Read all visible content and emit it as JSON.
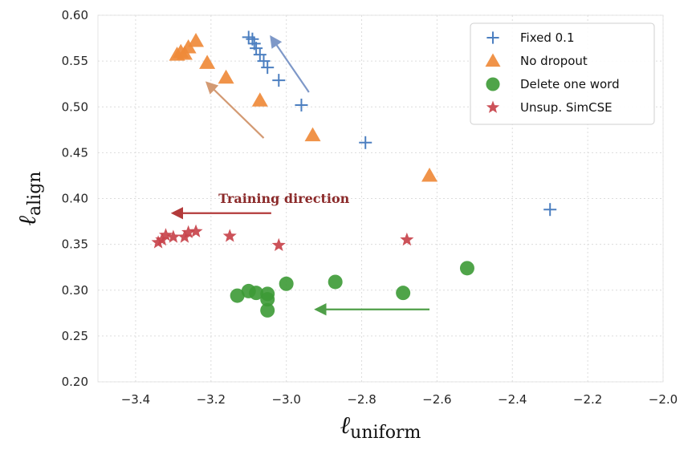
{
  "chart_data": {
    "type": "scatter",
    "title": "",
    "xlabel": {
      "main": "ℓ",
      "sub": "uniform"
    },
    "ylabel": {
      "main": "ℓ",
      "sub": "align"
    },
    "xlim": [
      -3.5,
      -2.0
    ],
    "ylim": [
      0.2,
      0.6
    ],
    "xticks": [
      -3.4,
      -3.2,
      -3.0,
      -2.8,
      -2.6,
      -2.4,
      -2.2,
      -2.0
    ],
    "xtick_labels": [
      "−3.4",
      "−3.2",
      "−3.0",
      "−2.8",
      "−2.6",
      "−2.4",
      "−2.2",
      "−2.0"
    ],
    "yticks": [
      0.2,
      0.25,
      0.3,
      0.35,
      0.4,
      0.45,
      0.5,
      0.55,
      0.6
    ],
    "ytick_labels": [
      "0.20",
      "0.25",
      "0.30",
      "0.35",
      "0.40",
      "0.45",
      "0.50",
      "0.55",
      "0.60"
    ],
    "grid": true,
    "legend_position": "top-right",
    "series": [
      {
        "name": "Fixed 0.1",
        "marker": "plus",
        "color": "#4c7fc0",
        "points": [
          [
            -2.3,
            0.388
          ],
          [
            -2.79,
            0.461
          ],
          [
            -2.96,
            0.502
          ],
          [
            -3.02,
            0.529
          ],
          [
            -3.05,
            0.543
          ],
          [
            -3.06,
            0.55
          ],
          [
            -3.07,
            0.557
          ],
          [
            -3.08,
            0.564
          ],
          [
            -3.085,
            0.569
          ],
          [
            -3.09,
            0.574
          ],
          [
            -3.1,
            0.576
          ]
        ]
      },
      {
        "name": "No dropout",
        "marker": "triangle",
        "color": "#ef8a3a",
        "points": [
          [
            -2.62,
            0.425
          ],
          [
            -2.93,
            0.469
          ],
          [
            -3.07,
            0.507
          ],
          [
            -3.16,
            0.532
          ],
          [
            -3.21,
            0.548
          ],
          [
            -3.24,
            0.572
          ],
          [
            -3.26,
            0.565
          ],
          [
            -3.27,
            0.558
          ],
          [
            -3.28,
            0.56
          ],
          [
            -3.29,
            0.557
          ]
        ]
      },
      {
        "name": "Delete one word",
        "marker": "circle",
        "color": "#3c9a35",
        "points": [
          [
            -2.52,
            0.324
          ],
          [
            -2.69,
            0.297
          ],
          [
            -2.87,
            0.309
          ],
          [
            -3.0,
            0.307
          ],
          [
            -3.05,
            0.296
          ],
          [
            -3.05,
            0.29
          ],
          [
            -3.05,
            0.278
          ],
          [
            -3.08,
            0.297
          ],
          [
            -3.1,
            0.299
          ],
          [
            -3.13,
            0.294
          ]
        ]
      },
      {
        "name": "Unsup. SimCSE",
        "marker": "star",
        "color": "#c8434b",
        "points": [
          [
            -2.68,
            0.355
          ],
          [
            -3.02,
            0.349
          ],
          [
            -3.15,
            0.359
          ],
          [
            -3.24,
            0.364
          ],
          [
            -3.26,
            0.363
          ],
          [
            -3.27,
            0.358
          ],
          [
            -3.3,
            0.358
          ],
          [
            -3.32,
            0.36
          ],
          [
            -3.33,
            0.355
          ],
          [
            -3.34,
            0.352
          ]
        ]
      }
    ],
    "annotations": [
      {
        "text": "Training direction",
        "x": -3.18,
        "y": 0.395,
        "color": "#8b2a2a"
      }
    ],
    "arrows": [
      {
        "from": [
          -2.94,
          0.516
        ],
        "to": [
          -3.04,
          0.576
        ],
        "color": "#7e98c8"
      },
      {
        "from": [
          -3.06,
          0.466
        ],
        "to": [
          -3.21,
          0.526
        ],
        "color": "#d39a73"
      },
      {
        "from": [
          -3.04,
          0.384
        ],
        "to": [
          -3.3,
          0.384
        ],
        "color": "#b33a3a"
      },
      {
        "from": [
          -2.62,
          0.279
        ],
        "to": [
          -2.92,
          0.279
        ],
        "color": "#4f9f48"
      }
    ]
  }
}
